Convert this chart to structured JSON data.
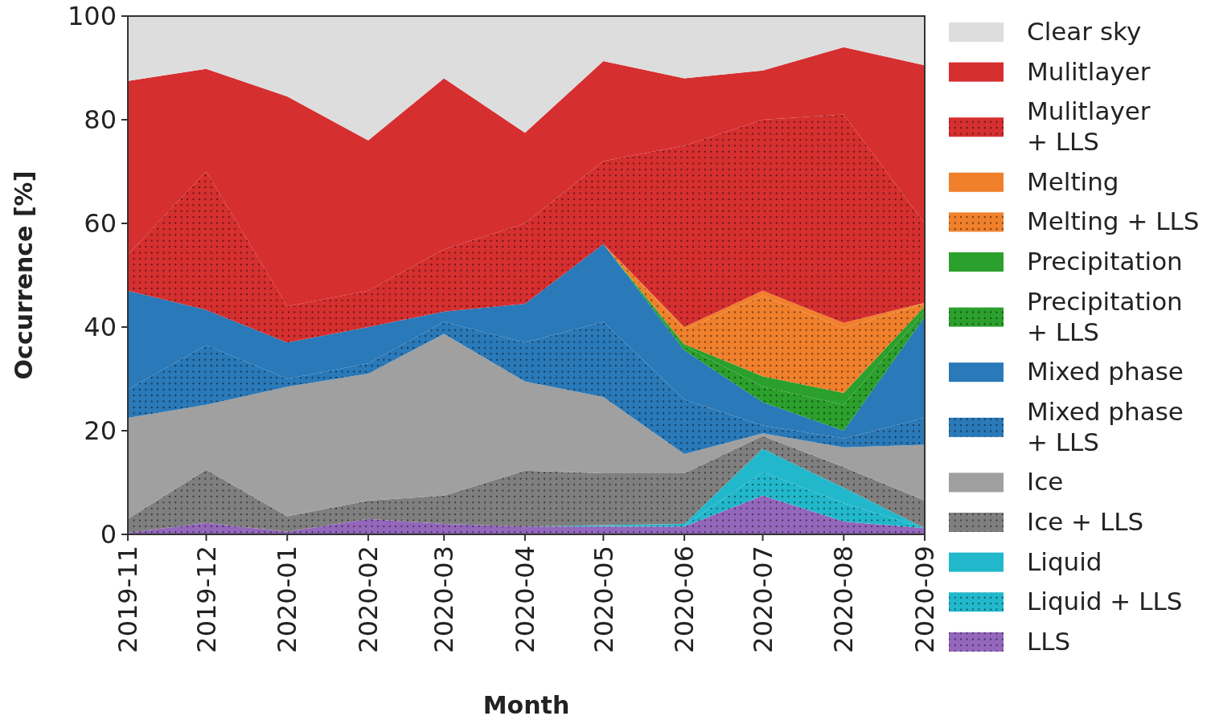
{
  "chart_data": {
    "type": "area",
    "stacked": true,
    "xlabel": "Month",
    "ylabel": "Occurrence [%]",
    "x": [
      "2019-11",
      "2019-12",
      "2020-01",
      "2020-02",
      "2020-03",
      "2020-04",
      "2020-05",
      "2020-06",
      "2020-07",
      "2020-08",
      "2020-09"
    ],
    "xlim": [
      "2019-11",
      "2020-09"
    ],
    "xticks": [
      "2019-11",
      "2019-12",
      "2020-01",
      "2020-02",
      "2020-03",
      "2020-04",
      "2020-05",
      "2020-06",
      "2020-07",
      "2020-08",
      "2020-09"
    ],
    "ylim": [
      0,
      100
    ],
    "yticks": [
      0,
      20,
      40,
      60,
      80,
      100
    ],
    "legend": "right",
    "grid": false,
    "series": [
      {
        "name": "LLS",
        "color": "#9467bd",
        "line_style": "dotted",
        "values": [
          0.3,
          2.2,
          0.5,
          3,
          2,
          1.5,
          1.5,
          1.5,
          7.5,
          2.5,
          1.2
        ]
      },
      {
        "name": "Liquid + LLS",
        "color": "#22b8cc",
        "line_style": "dotted",
        "values": [
          0,
          0,
          0,
          0,
          0,
          0,
          0.1,
          0.2,
          4.5,
          3.5,
          0
        ]
      },
      {
        "name": "Liquid",
        "color": "#22b8cc",
        "values": [
          0,
          0,
          0,
          0,
          0,
          0,
          0.2,
          0.3,
          4.5,
          3,
          0
        ]
      },
      {
        "name": "Ice + LLS",
        "color": "#7f7f7f",
        "line_style": "dotted",
        "values": [
          2.7,
          10.3,
          3,
          3.5,
          5.5,
          10.8,
          10,
          9.8,
          2.5,
          4,
          5.3
        ]
      },
      {
        "name": "Ice",
        "color": "#a0a0a0",
        "values": [
          19.5,
          12.5,
          25,
          24.5,
          31.2,
          17.2,
          14.7,
          3.7,
          0.5,
          3.8,
          10.8
        ]
      },
      {
        "name": "Mixed phase + LLS",
        "color": "#2a79b8",
        "line_style": "dotted",
        "values": [
          5.5,
          11.5,
          1.5,
          2,
          2.3,
          7.5,
          14.5,
          10.5,
          1.5,
          1.7,
          5.2
        ]
      },
      {
        "name": "Mixed phase",
        "color": "#2a79b8",
        "values": [
          19,
          6.8,
          7,
          7,
          2,
          7.5,
          15,
          9.5,
          4.5,
          1.5,
          19.5
        ]
      },
      {
        "name": "Precipitation + LLS",
        "color": "#2ca02c",
        "line_style": "dotted",
        "values": [
          0,
          0,
          0,
          0,
          0,
          0,
          0,
          0.8,
          3,
          5,
          1
        ]
      },
      {
        "name": "Precipitation",
        "color": "#2ca02c",
        "values": [
          0,
          0,
          0,
          0,
          0,
          0,
          0,
          0.4,
          2,
          2.3,
          1
        ]
      },
      {
        "name": "Melting + LLS",
        "color": "#f0802b",
        "line_style": "dotted",
        "values": [
          0,
          0,
          0,
          0,
          0,
          0,
          0,
          2.8,
          15.5,
          12.5,
          0.5
        ]
      },
      {
        "name": "Melting",
        "color": "#f0802b",
        "values": [
          0,
          0,
          0,
          0,
          0,
          0,
          0,
          0.5,
          1,
          1,
          0.2
        ]
      },
      {
        "name": "Mulitlayer + LLS",
        "color": "#d62f30",
        "line_style": "dotted",
        "values": [
          7,
          26.7,
          7,
          7,
          12,
          15.5,
          16,
          35,
          33,
          40.2,
          15.3
        ]
      },
      {
        "name": "Mulitlayer",
        "color": "#d62f30",
        "values": [
          33.5,
          19.8,
          40.5,
          29,
          33,
          17.5,
          19.3,
          13,
          9.5,
          13,
          30.5
        ]
      },
      {
        "name": "Clear sky",
        "color": "#dddddd",
        "values": [
          12.5,
          10.2,
          15.5,
          24,
          12,
          22.5,
          8.7,
          12,
          10.5,
          6,
          9.5
        ]
      }
    ]
  }
}
